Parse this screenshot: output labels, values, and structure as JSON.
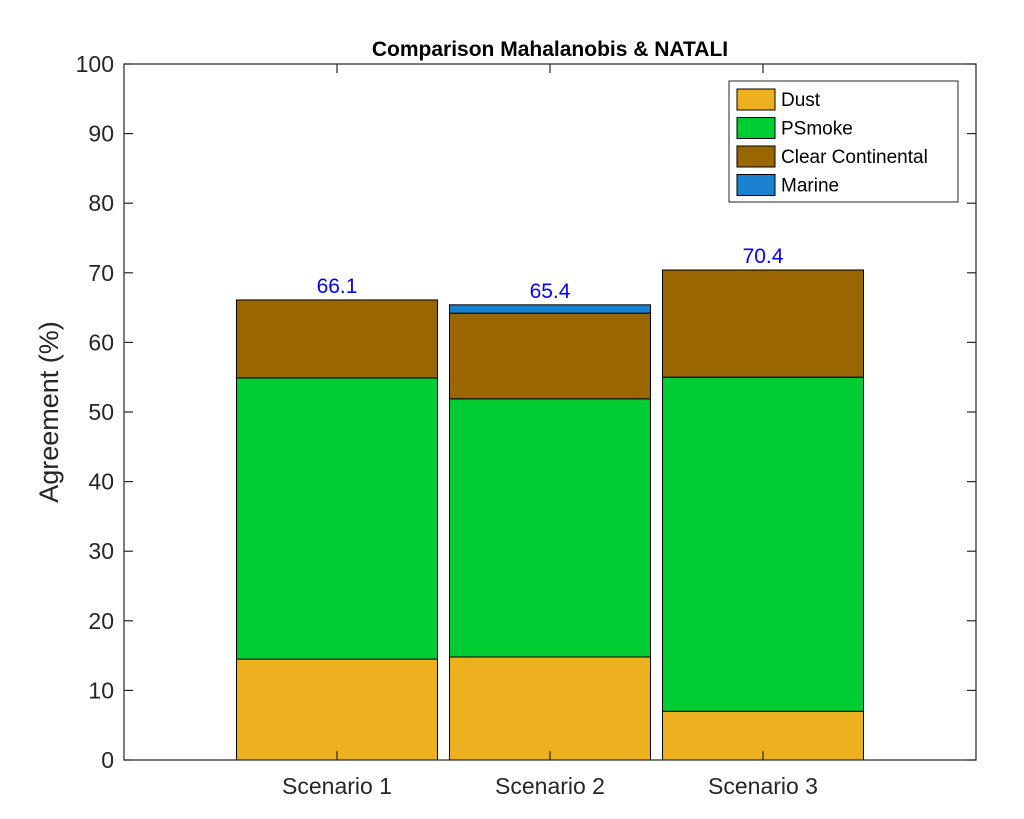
{
  "chart_data": {
    "type": "bar",
    "stacked": true,
    "title": "Comparison Mahalanobis & NATALI",
    "xlabel": "",
    "ylabel": "Agreement (%)",
    "ylim": [
      0,
      100
    ],
    "yticks": [
      0,
      10,
      20,
      30,
      40,
      50,
      60,
      70,
      80,
      90,
      100
    ],
    "grid": false,
    "legend_position": "top-right",
    "categories": [
      "Scenario 1",
      "Scenario 2",
      "Scenario 3"
    ],
    "series": [
      {
        "name": "Dust",
        "color": "#EDB120",
        "values": [
          14.5,
          14.8,
          7.0
        ]
      },
      {
        "name": "PSmoke",
        "color": "#00CC33",
        "values": [
          40.4,
          37.1,
          48.0
        ]
      },
      {
        "name": "Clear Continental",
        "color": "#996600",
        "values": [
          11.2,
          12.3,
          15.4
        ]
      },
      {
        "name": "Marine",
        "color": "#1A80D0",
        "values": [
          0.0,
          1.2,
          0.0
        ]
      }
    ],
    "totals": [
      "66.1",
      "65.4",
      "70.4"
    ],
    "total_label_color": "#0000FF"
  }
}
